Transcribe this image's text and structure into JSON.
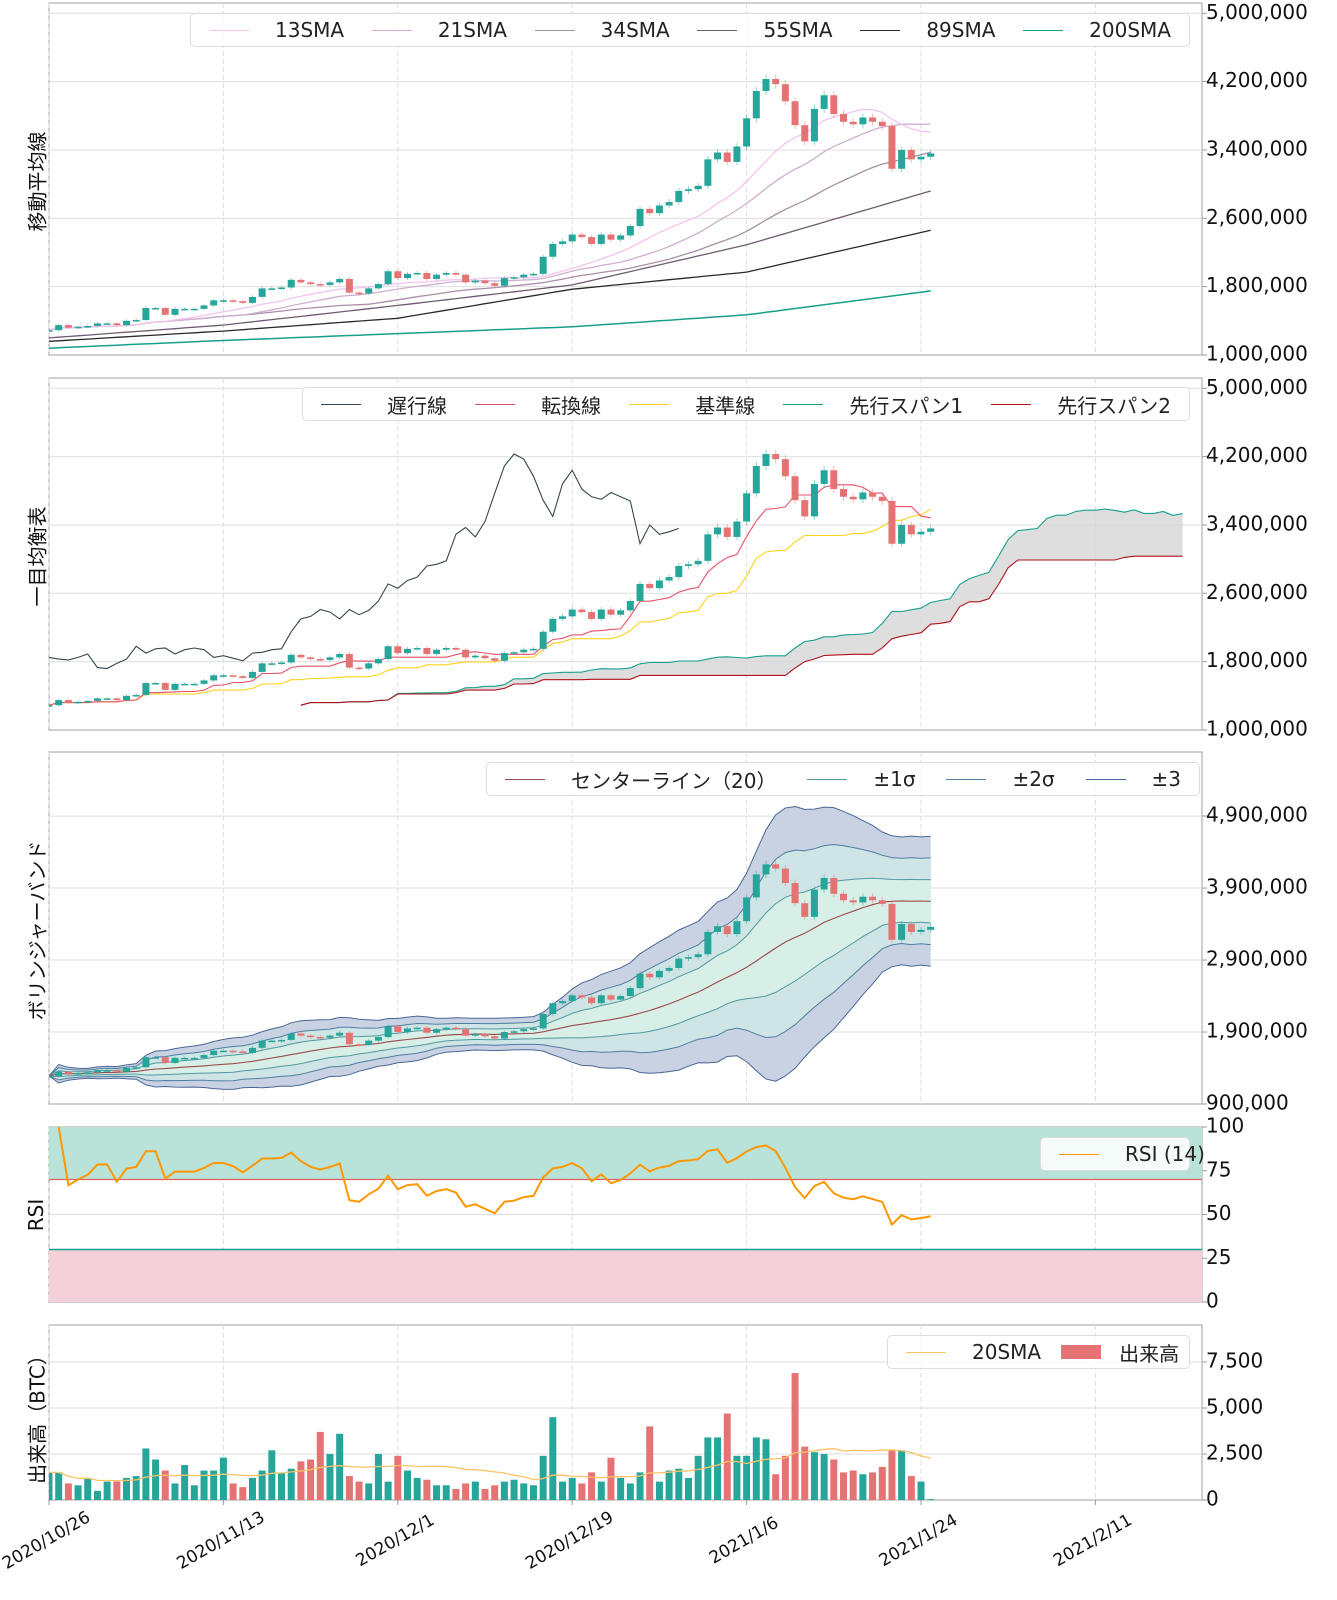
{
  "chart_data": {
    "type": "candlestick",
    "x": [
      "2020-10-26",
      "2020-10-27",
      "2020-10-28",
      "2020-10-29",
      "2020-10-30",
      "2020-10-31",
      "2020-11-01",
      "2020-11-02",
      "2020-11-03",
      "2020-11-04",
      "2020-11-05",
      "2020-11-06",
      "2020-11-07",
      "2020-11-08",
      "2020-11-09",
      "2020-11-10",
      "2020-11-11",
      "2020-11-12",
      "2020-11-13",
      "2020-11-14",
      "2020-11-15",
      "2020-11-16",
      "2020-11-17",
      "2020-11-18",
      "2020-11-19",
      "2020-11-20",
      "2020-11-21",
      "2020-11-22",
      "2020-11-23",
      "2020-11-24",
      "2020-11-25",
      "2020-11-26",
      "2020-11-27",
      "2020-11-28",
      "2020-11-29",
      "2020-11-30",
      "2020-12-01",
      "2020-12-02",
      "2020-12-03",
      "2020-12-04",
      "2020-12-05",
      "2020-12-06",
      "2020-12-07",
      "2020-12-08",
      "2020-12-09",
      "2020-12-10",
      "2020-12-11",
      "2020-12-12",
      "2020-12-13",
      "2020-12-14",
      "2020-12-15",
      "2020-12-16",
      "2020-12-17",
      "2020-12-18",
      "2020-12-19",
      "2020-12-20",
      "2020-12-21",
      "2020-12-22",
      "2020-12-23",
      "2020-12-24",
      "2020-12-25",
      "2020-12-26",
      "2020-12-27",
      "2020-12-28",
      "2020-12-29",
      "2020-12-30",
      "2020-12-31",
      "2021-01-01",
      "2021-01-02",
      "2021-01-03",
      "2021-01-04",
      "2021-01-05",
      "2021-01-06",
      "2021-01-07",
      "2021-01-08",
      "2021-01-09",
      "2021-01-10",
      "2021-01-11",
      "2021-01-12",
      "2021-01-13",
      "2021-01-14",
      "2021-01-15",
      "2021-01-16",
      "2021-01-17",
      "2021-01-18",
      "2021-01-19",
      "2021-01-20",
      "2021-01-21",
      "2021-01-22",
      "2021-01-23",
      "2021-01-24",
      "2021-01-25"
    ],
    "xlim": [
      "2020-10-26",
      "2021-02-22"
    ],
    "xticks": [
      {
        "date": "2020-10-26",
        "label": "2020/10/26"
      },
      {
        "date": "2020-11-13",
        "label": "2020/11/13"
      },
      {
        "date": "2020-12-01",
        "label": "2020/12/1"
      },
      {
        "date": "2020-12-19",
        "label": "2020/12/19"
      },
      {
        "date": "2021-01-06",
        "label": "2021/1/6"
      },
      {
        "date": "2021-01-24",
        "label": "2021/1/24"
      },
      {
        "date": "2021-02-11",
        "label": "2021/2/11"
      }
    ],
    "close": [
      1290000,
      1350000,
      1320000,
      1330000,
      1340000,
      1370000,
      1370000,
      1350000,
      1400000,
      1410000,
      1550000,
      1550000,
      1470000,
      1540000,
      1540000,
      1540000,
      1580000,
      1640000,
      1640000,
      1630000,
      1610000,
      1680000,
      1780000,
      1780000,
      1790000,
      1880000,
      1850000,
      1830000,
      1820000,
      1850000,
      1890000,
      1730000,
      1720000,
      1780000,
      1830000,
      1980000,
      1900000,
      1950000,
      1960000,
      1890000,
      1940000,
      1960000,
      1940000,
      1850000,
      1870000,
      1840000,
      1810000,
      1900000,
      1910000,
      1940000,
      1950000,
      2150000,
      2300000,
      2330000,
      2410000,
      2380000,
      2300000,
      2410000,
      2350000,
      2400000,
      2510000,
      2710000,
      2660000,
      2750000,
      2790000,
      2920000,
      2940000,
      2980000,
      3290000,
      3370000,
      3260000,
      3440000,
      3770000,
      4090000,
      4230000,
      4170000,
      3970000,
      3690000,
      3500000,
      3880000,
      4040000,
      3820000,
      3730000,
      3700000,
      3780000,
      3730000,
      3680000,
      3180000,
      3400000,
      3290000,
      3320000,
      3360000
    ],
    "volume": [
      1500,
      1500,
      900,
      800,
      1200,
      500,
      1000,
      1000,
      1200,
      1300,
      2800,
      2200,
      1600,
      900,
      1900,
      800,
      1600,
      1600,
      2300,
      900,
      700,
      1200,
      1600,
      2700,
      1500,
      1700,
      2100,
      2200,
      3700,
      2500,
      3600,
      1300,
      1000,
      900,
      2500,
      1000,
      2400,
      1600,
      1200,
      1100,
      800,
      800,
      600,
      900,
      1000,
      600,
      800,
      1000,
      1100,
      900,
      800,
      2400,
      4500,
      1000,
      1200,
      900,
      1500,
      1000,
      2300,
      1200,
      900,
      1500,
      4000,
      1000,
      1600,
      1700,
      1200,
      2400,
      3400,
      3400,
      4700,
      2400,
      2400,
      3400,
      3300,
      1400,
      2400,
      6900,
      2900,
      2600,
      2500,
      2200,
      1500,
      1600,
      1400,
      1500,
      1800,
      2700,
      2700,
      1300,
      1000,
      50
    ],
    "sma_long": [
      {
        "name": "55SMA",
        "points": [
          [
            "2020-10-26",
            1200000
          ],
          [
            "2020-11-13",
            1350000
          ],
          [
            "2020-12-01",
            1580000
          ],
          [
            "2020-12-19",
            1820000
          ],
          [
            "2021-01-06",
            2290000
          ],
          [
            "2021-01-25",
            2920000
          ]
        ]
      },
      {
        "name": "89SMA",
        "points": [
          [
            "2020-10-26",
            1160000
          ],
          [
            "2020-11-13",
            1280000
          ],
          [
            "2020-12-01",
            1430000
          ],
          [
            "2020-12-19",
            1770000
          ],
          [
            "2021-01-06",
            1970000
          ],
          [
            "2021-01-25",
            2460000
          ]
        ]
      },
      {
        "name": "200SMA",
        "points": [
          [
            "2020-10-26",
            1080000
          ],
          [
            "2020-11-13",
            1170000
          ],
          [
            "2020-12-01",
            1250000
          ],
          [
            "2020-12-19",
            1330000
          ],
          [
            "2021-01-06",
            1470000
          ],
          [
            "2021-01-25",
            1750000
          ]
        ]
      }
    ],
    "panels": [
      {
        "ylabel": "移動平均線",
        "ylim": [
          1000000,
          5120000
        ],
        "yticks": [
          {
            "v": 1000000,
            "label": "1,000,000"
          },
          {
            "v": 1800000,
            "label": "1,800,000"
          },
          {
            "v": 2600000,
            "label": "2,600,000"
          },
          {
            "v": 3400000,
            "label": "3,400,000"
          },
          {
            "v": 4200000,
            "label": "4,200,000"
          },
          {
            "v": 5000000,
            "label": "5,000,000"
          }
        ]
      },
      {
        "ylabel": "一目均衡表",
        "ylim": [
          1000000,
          5120000
        ],
        "yticks": [
          {
            "v": 1000000,
            "label": "1,000,000"
          },
          {
            "v": 1800000,
            "label": "1,800,000"
          },
          {
            "v": 2600000,
            "label": "2,600,000"
          },
          {
            "v": 3400000,
            "label": "3,400,000"
          },
          {
            "v": 4200000,
            "label": "4,200,000"
          },
          {
            "v": 5000000,
            "label": "5,000,000"
          }
        ]
      },
      {
        "ylabel": "ボリンジャーバンド",
        "ylim": [
          900000,
          5790000
        ],
        "yticks": [
          {
            "v": 900000,
            "label": "900,000"
          },
          {
            "v": 1900000,
            "label": "1,900,000"
          },
          {
            "v": 2900000,
            "label": "2,900,000"
          },
          {
            "v": 3900000,
            "label": "3,900,000"
          },
          {
            "v": 4900000,
            "label": "4,900,000"
          }
        ]
      },
      {
        "ylabel": "RSI",
        "ylim": [
          0,
          100
        ],
        "yticks": [
          {
            "v": 0,
            "label": "0"
          },
          {
            "v": 25,
            "label": "25"
          },
          {
            "v": 50,
            "label": "50"
          },
          {
            "v": 75,
            "label": "75"
          },
          {
            "v": 100,
            "label": "100"
          }
        ],
        "overbought": 70,
        "oversold": 30
      },
      {
        "ylabel": "出来高（BTC）",
        "ylim": [
          0,
          9510
        ],
        "yticks": [
          {
            "v": 0,
            "label": "0"
          },
          {
            "v": 2500,
            "label": "2,500"
          },
          {
            "v": 5000,
            "label": "5,000"
          },
          {
            "v": 7500,
            "label": "7,500"
          }
        ]
      }
    ],
    "grid": true
  },
  "legends": {
    "sma": [
      {
        "label": "13SMA",
        "color": "#f2c4ee"
      },
      {
        "label": "21SMA",
        "color": "#cfaed0"
      },
      {
        "label": "34SMA",
        "color": "#a98fa8"
      },
      {
        "label": "55SMA",
        "color": "#6f5a72"
      },
      {
        "label": "89SMA",
        "color": "#2a2a2a"
      },
      {
        "label": "200SMA",
        "color": "#16a08a"
      }
    ],
    "ichimoku": [
      {
        "label": "遅行線",
        "color": "#35474a"
      },
      {
        "label": "転換線",
        "color": "#e8506a"
      },
      {
        "label": "基準線",
        "color": "#ffd21a"
      },
      {
        "label": "先行スパン1",
        "color": "#16a08a"
      },
      {
        "label": "先行スパン2",
        "color": "#b0101c"
      }
    ],
    "bollinger": [
      {
        "label": "センターライン（20）",
        "color": "#9a4a4a"
      },
      {
        "label": "±1σ",
        "color": "#4f9aa0"
      },
      {
        "label": "±2σ",
        "color": "#4f7ea0"
      },
      {
        "label": "±3",
        "color": "#4a6696"
      }
    ],
    "rsi": [
      {
        "label": "RSI (14)",
        "color": "#ff9800"
      }
    ],
    "volume": [
      {
        "label": "20SMA",
        "color": "#ffc266"
      },
      {
        "label": "出来高",
        "color": "#e57373"
      }
    ]
  },
  "colors": {
    "up": "#26a69a",
    "down": "#e57373",
    "cloud": "#d6d6d6",
    "rsi_high_zone": "#b9e2d8",
    "rsi_low_zone": "#f4d0d8",
    "bb3_fill": "#c9d2e2",
    "bb2_fill": "#cfe4e4",
    "bb1_fill": "#d8efe8"
  }
}
